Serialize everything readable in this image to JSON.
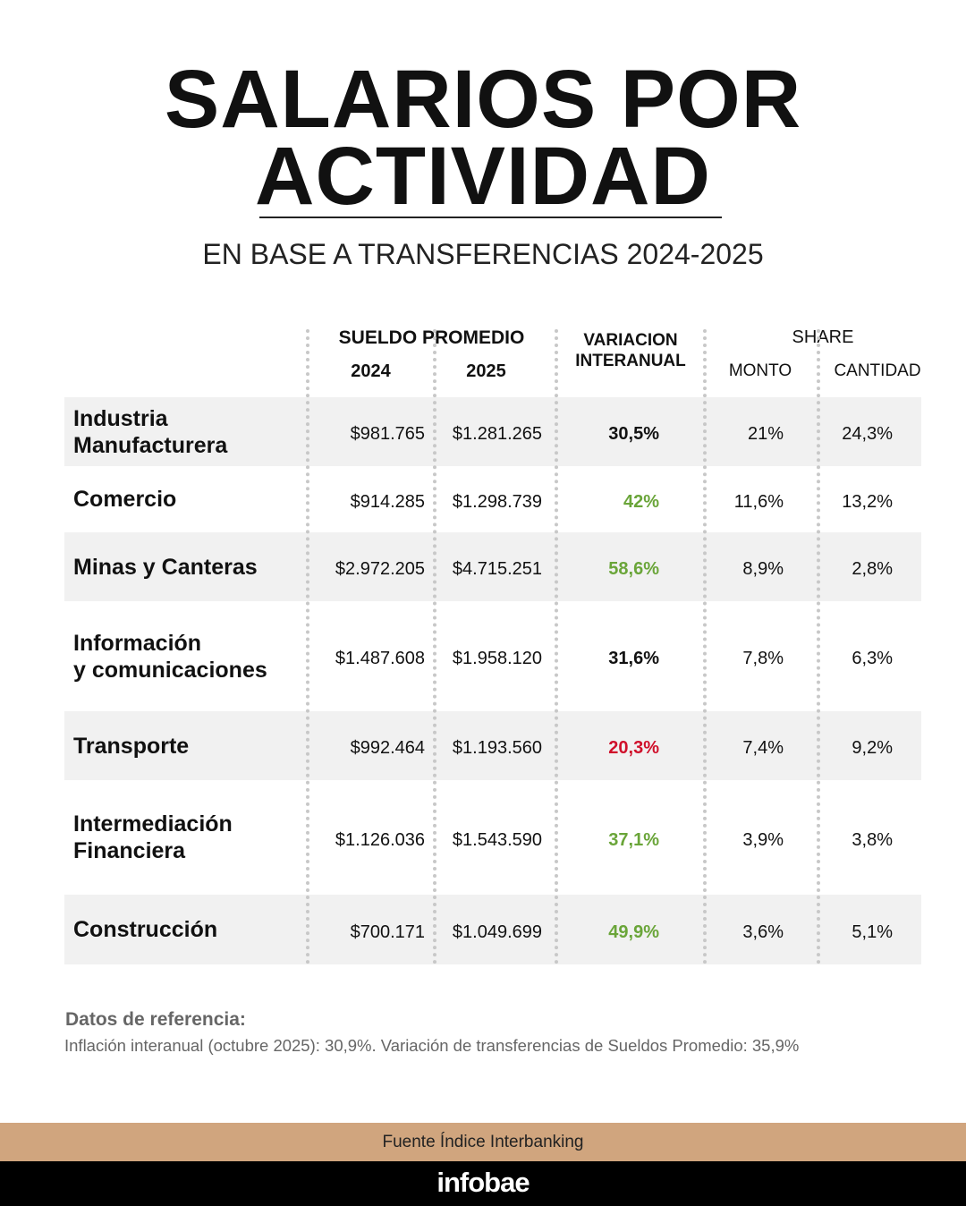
{
  "header": {
    "title_line1": "SALARIOS POR",
    "title_line2": "ACTIVIDAD",
    "subtitle": "EN BASE A TRANSFERENCIAS 2024-2025"
  },
  "columns": {
    "sueldo": "SUELDO PROMEDIO",
    "y2024": "2024",
    "y2025": "2025",
    "var1": "VARIACION",
    "var2": "INTERANUAL",
    "share": "SHARE",
    "monto": "MONTO",
    "cantidad": "CANTIDAD"
  },
  "colors": {
    "green": "#6aa539",
    "red": "#d0102b",
    "black": "#111111",
    "source_bar": "#d0a57e"
  },
  "rows": [
    {
      "label": "Industria\nManufacturera",
      "s2024": "$981.765",
      "s2025": "$1.281.265",
      "var": "30,5%",
      "var_color": "black",
      "monto": "21%",
      "cantidad": "24,3%"
    },
    {
      "label": "Comercio",
      "s2024": "$914.285",
      "s2025": "$1.298.739",
      "var": "42%",
      "var_color": "green",
      "monto": "11,6%",
      "cantidad": "13,2%"
    },
    {
      "label": "Minas y Canteras",
      "s2024": "$2.972.205",
      "s2025": "$4.715.251",
      "var": "58,6%",
      "var_color": "green",
      "monto": "8,9%",
      "cantidad": "2,8%"
    },
    {
      "label": "Información\ny comunicaciones",
      "s2024": "$1.487.608",
      "s2025": "$1.958.120",
      "var": "31,6%",
      "var_color": "black",
      "monto": "7,8%",
      "cantidad": "6,3%"
    },
    {
      "label": "Transporte",
      "s2024": "$992.464",
      "s2025": "$1.193.560",
      "var": "20,3%",
      "var_color": "red",
      "monto": "7,4%",
      "cantidad": "9,2%"
    },
    {
      "label": " Intermediación\nFinanciera",
      "s2024": "$1.126.036",
      "s2025": "$1.543.590",
      "var": "37,1%",
      "var_color": "green",
      "monto": "3,9%",
      "cantidad": "3,8%"
    },
    {
      "label": "Construcción",
      "s2024": "$700.171",
      "s2025": "$1.049.699",
      "var": "49,9%",
      "var_color": "green",
      "monto": "3,6%",
      "cantidad": "5,1%"
    }
  ],
  "chart_data": {
    "type": "table",
    "title": "SALARIOS POR ACTIVIDAD",
    "subtitle": "EN BASE A TRANSFERENCIAS 2024-2025",
    "headers": [
      "",
      "SUELDO PROMEDIO 2024",
      "SUELDO PROMEDIO 2025",
      "VARIACION INTERANUAL",
      "SHARE MONTO",
      "SHARE CANTIDAD"
    ]
  },
  "reference": {
    "title": "Datos de referencia:",
    "body": "Inflación interanual (octubre 2025): 30,9%. Variación de transferencias de Sueldos Promedio: 35,9%"
  },
  "footer": {
    "source": "Fuente Índice Interbanking",
    "logo": "infobae"
  }
}
